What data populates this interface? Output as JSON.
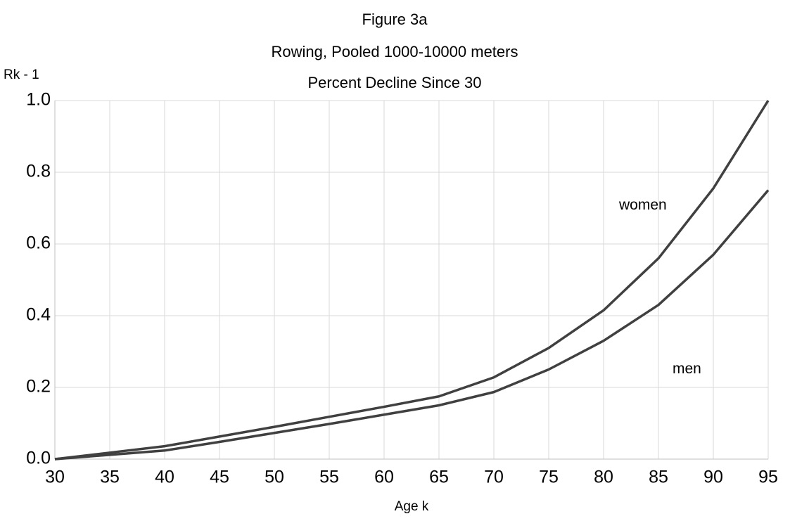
{
  "chart_data": {
    "type": "line",
    "title": "Figure 3a",
    "subtitle": [
      "Rowing, Pooled 1000-10000 meters",
      "Percent Decline Since 30"
    ],
    "xlabel": "Age k",
    "ylabel": "Rk - 1",
    "x": [
      30,
      35,
      40,
      45,
      50,
      55,
      60,
      65,
      70,
      75,
      80,
      85,
      90,
      95
    ],
    "series": [
      {
        "name": "women",
        "color": "#404040",
        "values": [
          0,
          0.018,
          0.036,
          0.063,
          0.09,
          0.118,
          0.146,
          0.175,
          0.228,
          0.31,
          0.415,
          0.56,
          0.755,
          1.0
        ]
      },
      {
        "name": "men",
        "color": "#404040",
        "values": [
          0,
          0.012,
          0.024,
          0.048,
          0.073,
          0.098,
          0.124,
          0.15,
          0.187,
          0.25,
          0.33,
          0.43,
          0.57,
          0.75
        ]
      }
    ],
    "xlim": [
      30,
      95
    ],
    "xticks": [
      30,
      35,
      40,
      45,
      50,
      55,
      60,
      65,
      70,
      75,
      80,
      85,
      90,
      95
    ],
    "ylim": [
      0,
      1
    ],
    "yticks": [
      {
        "value": 0,
        "label": "0.0"
      },
      0.2,
      0.4,
      0.6,
      0.8,
      {
        "value": 1,
        "label": "1.0"
      }
    ],
    "grid": true
  }
}
